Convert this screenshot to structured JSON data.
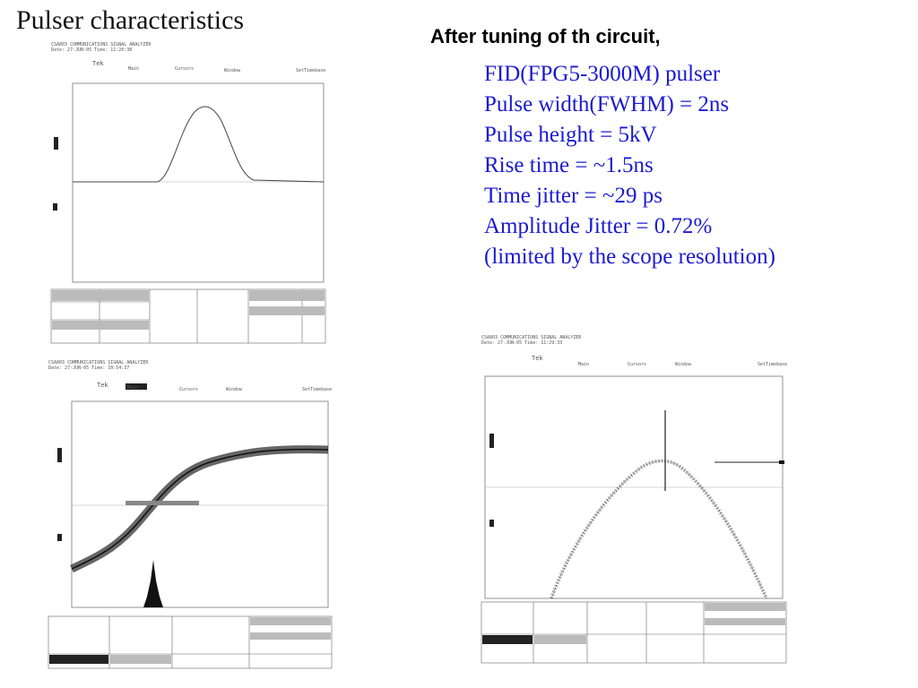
{
  "slide": {
    "title": "Pulser characteristics",
    "heading": "After tuning of th circuit,",
    "specs": [
      "FID(FPG5-3000M) pulser",
      "Pulse width(FWHM) = 2ns",
      "Pulse height = 5kV",
      "Rise time =  ~1.5ns",
      "Time jitter = ~29 ps",
      "Amplitude Jitter = 0.72%",
      "(limited by the scope resolution)"
    ]
  },
  "colors": {
    "spec_text": "#1a1ad0",
    "scope_ink": "#444444",
    "scope_grid": "#999999"
  },
  "scopes": [
    {
      "name": "pulse-waveform",
      "header": "CSA803 COMMUNICATIONS SIGNAL ANALYZER",
      "header2": "Date: 27-JUN-05  Time: 11:20:38",
      "brand": "Tek",
      "menu": [
        "Main",
        "Cursors",
        "Window",
        "SetTimebase"
      ]
    },
    {
      "name": "rise-time-persistence",
      "header": "CSA803 COMMUNICATIONS SIGNAL ANALYZER",
      "header2": "Date: 27-JUN-05  Time: 10:54:37",
      "brand": "Tek",
      "menu": [
        "Main",
        "Cursors",
        "Window",
        "SetTimebase"
      ]
    },
    {
      "name": "amplitude-jitter-persistence",
      "header": "CSA803 COMMUNICATIONS SIGNAL ANALYZER",
      "header2": "Date: 27-JUN-05  Time: 11:29:33",
      "brand": "Tek",
      "menu": [
        "Main",
        "Cursors",
        "Window",
        "SetTimebase"
      ]
    }
  ]
}
